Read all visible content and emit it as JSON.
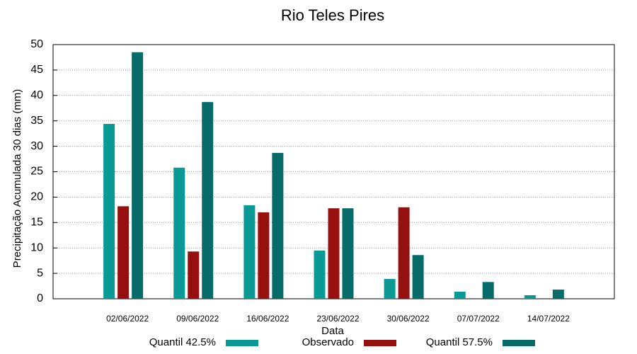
{
  "chart_data": {
    "type": "bar",
    "title": "Rio Teles Pires",
    "x_label": "Data",
    "y_label": "Precipitação Acumulada 30 dias (mm)",
    "categories": [
      "02/06/2022",
      "09/06/2022",
      "16/06/2022",
      "23/06/2022",
      "30/06/2022",
      "07/07/2022",
      "14/07/2022"
    ],
    "series": [
      {
        "name": "Quantil 42.5%",
        "color": "#0a9a96",
        "values": [
          34.4,
          25.8,
          18.4,
          9.5,
          3.9,
          1.4,
          0.7
        ]
      },
      {
        "name": "Observado",
        "color": "#961010",
        "values": [
          18.2,
          9.3,
          17.0,
          17.8,
          18.0,
          0,
          0
        ]
      },
      {
        "name": "Quantil 57.5%",
        "color": "#076b6a",
        "values": [
          48.5,
          38.7,
          28.7,
          17.8,
          8.6,
          3.3,
          1.8
        ]
      }
    ],
    "ylim": [
      0,
      50
    ],
    "yticks": [
      0,
      5,
      10,
      15,
      20,
      25,
      30,
      35,
      40,
      45,
      50
    ],
    "grid": true,
    "legend": "bottom"
  }
}
